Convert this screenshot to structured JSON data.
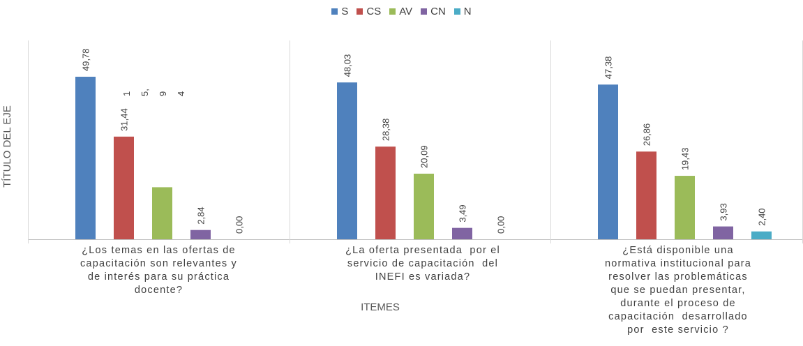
{
  "chart_data": {
    "type": "bar",
    "legend_position": "top",
    "ylabel": "TÍTULO DEL EJE",
    "xlabel": "ITEMES",
    "categories": [
      "¿Los temas en las ofertas de\ncapacitación son relevantes y\nde interés para su práctica\ndocente?",
      "¿La oferta presentada  por el\nservicio de capacitación  del\nINEFI es variada?",
      "¿Está disponible una\nnormativa institucional para\nresolver las problemáticas\nque se puedan presentar,\ndurante el proceso de\ncapacitación  desarrollado\npor  este servicio ?"
    ],
    "series": [
      {
        "name": "S",
        "color": "#4f81bd",
        "values": [
          49.78,
          48.03,
          47.38
        ]
      },
      {
        "name": "CS",
        "color": "#c0504d",
        "values": [
          31.44,
          28.38,
          26.86
        ]
      },
      {
        "name": "AV",
        "color": "#9bbb59",
        "values": [
          15.94,
          20.09,
          19.43
        ]
      },
      {
        "name": "CN",
        "color": "#8064a2",
        "values": [
          2.84,
          3.49,
          3.93
        ]
      },
      {
        "name": "N",
        "color": "#4bacc6",
        "values": [
          0.0,
          0.0,
          2.4
        ]
      }
    ],
    "data_labels": [
      [
        "49,78",
        "31,44",
        "",
        "2,84",
        "0,00"
      ],
      [
        "48,03",
        "28,38",
        "20,09",
        "3,49",
        "0,00"
      ],
      [
        "47,38",
        "26,86",
        "19,43",
        "3,93",
        "2,40"
      ]
    ],
    "split_label_chars": [
      "1",
      "5,",
      "9",
      "4"
    ],
    "ylim": [
      0,
      52
    ],
    "grid": false
  }
}
